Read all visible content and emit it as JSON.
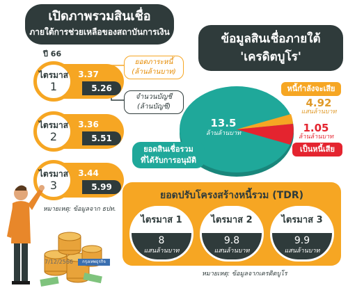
{
  "left": {
    "title_line1": "เปิดภาพรวมสินเชื่อ",
    "title_line2": "ภายใต้การช่วยเหลือของสถาบันการเงิน",
    "year": "ปี 66",
    "quarters": [
      {
        "label": "ไตรมาส",
        "number": "1",
        "amount": "3.37",
        "accounts": "5.26"
      },
      {
        "label": "ไตรมาส",
        "number": "2",
        "amount": "3.36",
        "accounts": "5.51"
      },
      {
        "label": "ไตรมาส",
        "number": "3",
        "amount": "3.44",
        "accounts": "5.99"
      }
    ],
    "callout_amount_line1": "ยอดภาระหนี้",
    "callout_amount_line2": "(ล้านล้านบาท)",
    "callout_accounts_line1": "จำนวนบัญชี",
    "callout_accounts_line2": "(ล้านบัญชี)",
    "note": "หมายเหตุ: ข้อมูลจาก ธปท.",
    "date": "7/12/2566",
    "badge": "กรุงเทพธุรกิจ"
  },
  "right": {
    "title_line1": "ข้อมูลสินเชื่อภายใต้",
    "title_line2": "'เครดิตบูโร'",
    "pie_total": "13.5",
    "pie_total_unit": "ล้านล้านบาท",
    "approved_line1": "ยอดสินเชื่อรวม",
    "approved_line2": "ที่ได้รับการอนุมัติ",
    "at_risk_label": "หนี้กำลังจะเสีย",
    "at_risk_value": "4.92",
    "at_risk_unit": "แสนล้านบาท",
    "npl_value": "1.05",
    "npl_unit": "ล้านล้านบาท",
    "npl_label": "เป็นหนี้เสีย",
    "colors": {
      "approved": "#1fa89a",
      "at_risk": "#f6a623",
      "npl": "#e4242f"
    }
  },
  "tdr": {
    "title": "ยอดปรับโครงสร้างหนี้รวม (TDR)",
    "quarters": [
      {
        "label": "ไตรมาส 1",
        "value": "8",
        "unit": "แสนล้านบาท"
      },
      {
        "label": "ไตรมาส 2",
        "value": "9.8",
        "unit": "แสนล้านบาท"
      },
      {
        "label": "ไตรมาส 3",
        "value": "9.9",
        "unit": "แสนล้านบาท"
      }
    ],
    "note": "หมายเหตุ: ข้อมูลจากเครดิตบูโร"
  }
}
